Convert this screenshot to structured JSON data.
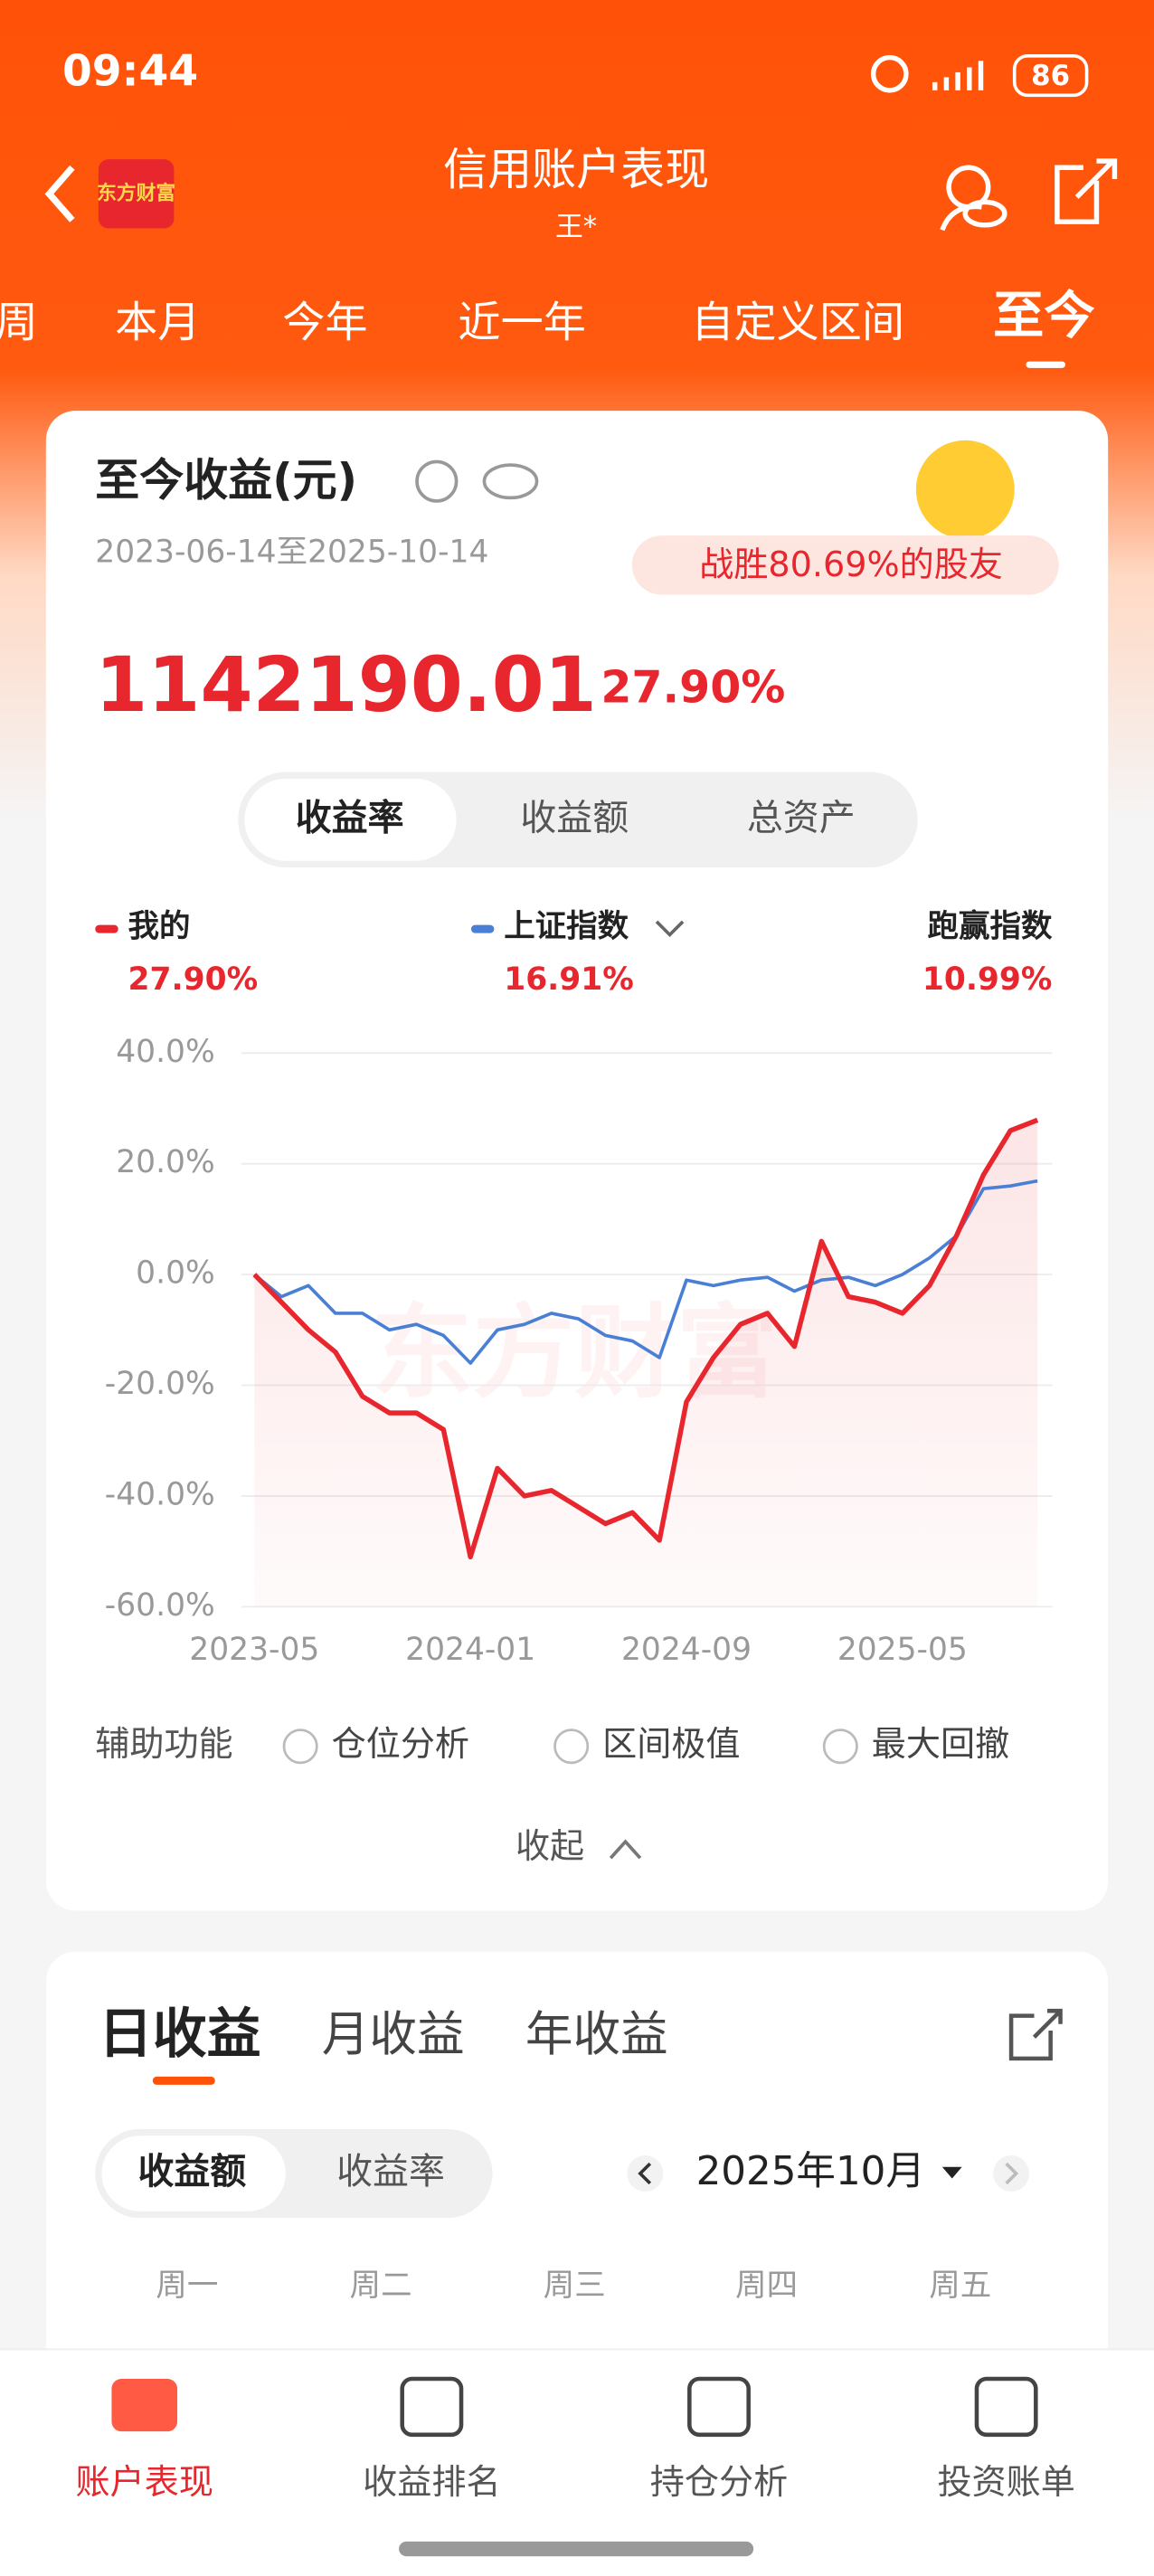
{
  "status_bar": {
    "time": "09:44",
    "battery": "86"
  },
  "header": {
    "logo": "东方财富",
    "title": "信用账户表现",
    "subtitle": "王*"
  },
  "tabs": [
    "周",
    "本月",
    "今年",
    "近一年",
    "自定义区间",
    "至今"
  ],
  "summary": {
    "title": "至今收益(元)",
    "date_range": "2023-06-14至2025-10-14",
    "badge": "战胜80.69%的股友",
    "amount": "1142190.01",
    "rate": "27.90%"
  },
  "segments": [
    "收益率",
    "收益额",
    "总资产"
  ],
  "outperform": {
    "label": "跑赢指数",
    "value": "10.99%"
  },
  "watermark": "东方财富",
  "chart_data": {
    "type": "line",
    "categories": [
      "2023-05",
      null,
      null,
      null,
      null,
      null,
      null,
      null,
      "2024-01",
      null,
      null,
      null,
      null,
      null,
      null,
      null,
      "2024-09",
      null,
      null,
      null,
      null,
      null,
      null,
      null,
      "2025-05",
      null,
      null,
      null,
      null,
      null
    ],
    "series": [
      {
        "name": "我的",
        "color": "#e8262d",
        "latest": "27.90%",
        "values": [
          0,
          -5,
          -10,
          -14,
          -22,
          -25,
          -25,
          -28,
          -51,
          -35,
          -40,
          -39,
          -42,
          -45,
          -43,
          -48,
          -23,
          -15,
          -9,
          -7,
          -13,
          6,
          -4,
          -5,
          -7,
          -2,
          7,
          18,
          26,
          27.9
        ]
      },
      {
        "name": "上证指数",
        "color": "#4a7fd6",
        "latest": "16.91%",
        "values": [
          0,
          -4,
          -2,
          -7,
          -7,
          -10,
          -9,
          -11,
          -16,
          -10,
          -9,
          -7,
          -8,
          -11,
          -12,
          -15,
          -1,
          -2,
          -1,
          -0.5,
          -3,
          -1,
          -0.5,
          -2,
          0,
          3,
          7,
          15.5,
          16,
          16.91
        ]
      }
    ],
    "ylim": [
      -60,
      40
    ],
    "yticks": [
      {
        "value": 40,
        "label": "40.0%"
      },
      {
        "value": 20,
        "label": "20.0%"
      },
      {
        "value": 0,
        "label": "0.0%"
      },
      {
        "value": -20,
        "label": "-20.0%"
      },
      {
        "value": -40,
        "label": "-40.0%"
      },
      {
        "value": -60,
        "label": "-60.0%"
      }
    ],
    "grid": true
  },
  "tools": {
    "label": "辅助功能",
    "options": [
      "仓位分析",
      "区间极值",
      "最大回撤"
    ],
    "collapse": "收起"
  },
  "daily": {
    "tabs": [
      "日收益",
      "月收益",
      "年收益"
    ],
    "toggle": [
      "收益额",
      "收益率"
    ],
    "month": "2025年10月",
    "weekdays": [
      "周一",
      "周二",
      "周三",
      "周四",
      "周五"
    ]
  },
  "nav": [
    "账户表现",
    "收益排名",
    "持仓分析",
    "投资账单"
  ]
}
